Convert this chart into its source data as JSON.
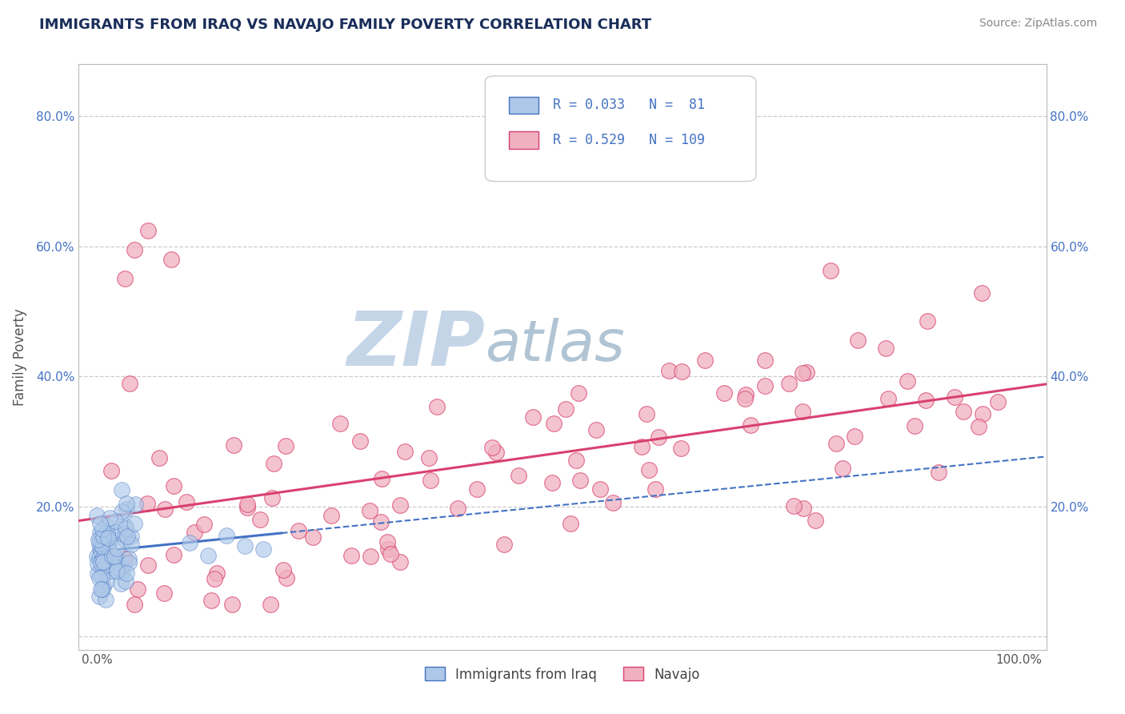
{
  "title": "IMMIGRANTS FROM IRAQ VS NAVAJO FAMILY POVERTY CORRELATION CHART",
  "source": "Source: ZipAtlas.com",
  "ylabel": "Family Poverty",
  "legend_label1": "Immigrants from Iraq",
  "legend_label2": "Navajo",
  "R1": 0.033,
  "N1": 81,
  "R2": 0.529,
  "N2": 109,
  "color_blue": "#adc8e8",
  "color_pink": "#f0b0c0",
  "line_color_blue": "#4472c4",
  "line_color_pink": "#d94070",
  "legend_text_color": "#4472c4",
  "title_color": "#1a2e5a",
  "background_color": "#ffffff",
  "grid_color": "#cccccc",
  "watermark_color_zip": "#c8d8ee",
  "watermark_color_atlas": "#b8c8d8",
  "ylim_min": -0.02,
  "ylim_max": 0.88,
  "xlim_min": -0.02,
  "xlim_max": 1.03
}
